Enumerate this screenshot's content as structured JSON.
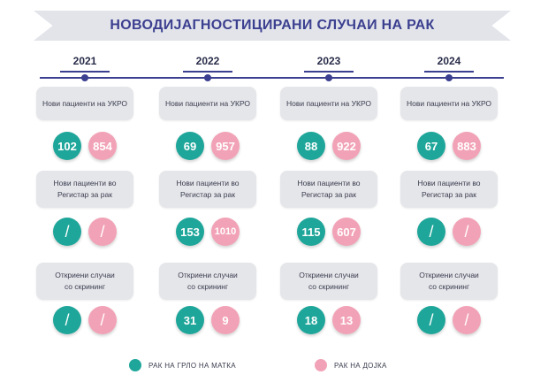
{
  "title": "НОВОДИЈАГНОСТИЦИРАНИ СЛУЧАИ НА РАК",
  "colors": {
    "cervical": "#1fa69a",
    "breast": "#f2a2b6",
    "accent": "#3b3f8f"
  },
  "years": [
    {
      "year": "2021",
      "ukro": {
        "label": "Нови пациенти на УКРО",
        "cervical": "102",
        "breast": "854"
      },
      "registry": {
        "label": "Нови пациенти во\nРегистар за рак",
        "cervical": "/",
        "breast": "/"
      },
      "screening": {
        "label": "Откриени случаи\nсо скрининг",
        "cervical": "/",
        "breast": "/"
      }
    },
    {
      "year": "2022",
      "ukro": {
        "label": "Нови пациенти на УКРО",
        "cervical": "69",
        "breast": "957"
      },
      "registry": {
        "label": "Нови пациенти во\nРегистар за рак",
        "cervical": "153",
        "breast": "1010"
      },
      "screening": {
        "label": "Откриени случаи\nсо скрининг",
        "cervical": "31",
        "breast": "9"
      }
    },
    {
      "year": "2023",
      "ukro": {
        "label": "Нови пациенти на УКРО",
        "cervical": "88",
        "breast": "922"
      },
      "registry": {
        "label": "Нови пациенти во\nРегистар за рак",
        "cervical": "115",
        "breast": "607"
      },
      "screening": {
        "label": "Откриени случаи\nсо скрининг",
        "cervical": "18",
        "breast": "13"
      }
    },
    {
      "year": "2024",
      "ukro": {
        "label": "Нови пациенти на УКРО",
        "cervical": "67",
        "breast": "883"
      },
      "registry": {
        "label": "Нови пациенти во\nРегистар за рак",
        "cervical": "/",
        "breast": "/"
      },
      "screening": {
        "label": "Откриени случаи\nсо скрининг",
        "cervical": "/",
        "breast": "/"
      }
    }
  ],
  "legend": {
    "cervical": "РАК НА ГРЛО НА МАТКА",
    "breast": "РАК НА ДОЈКА"
  }
}
